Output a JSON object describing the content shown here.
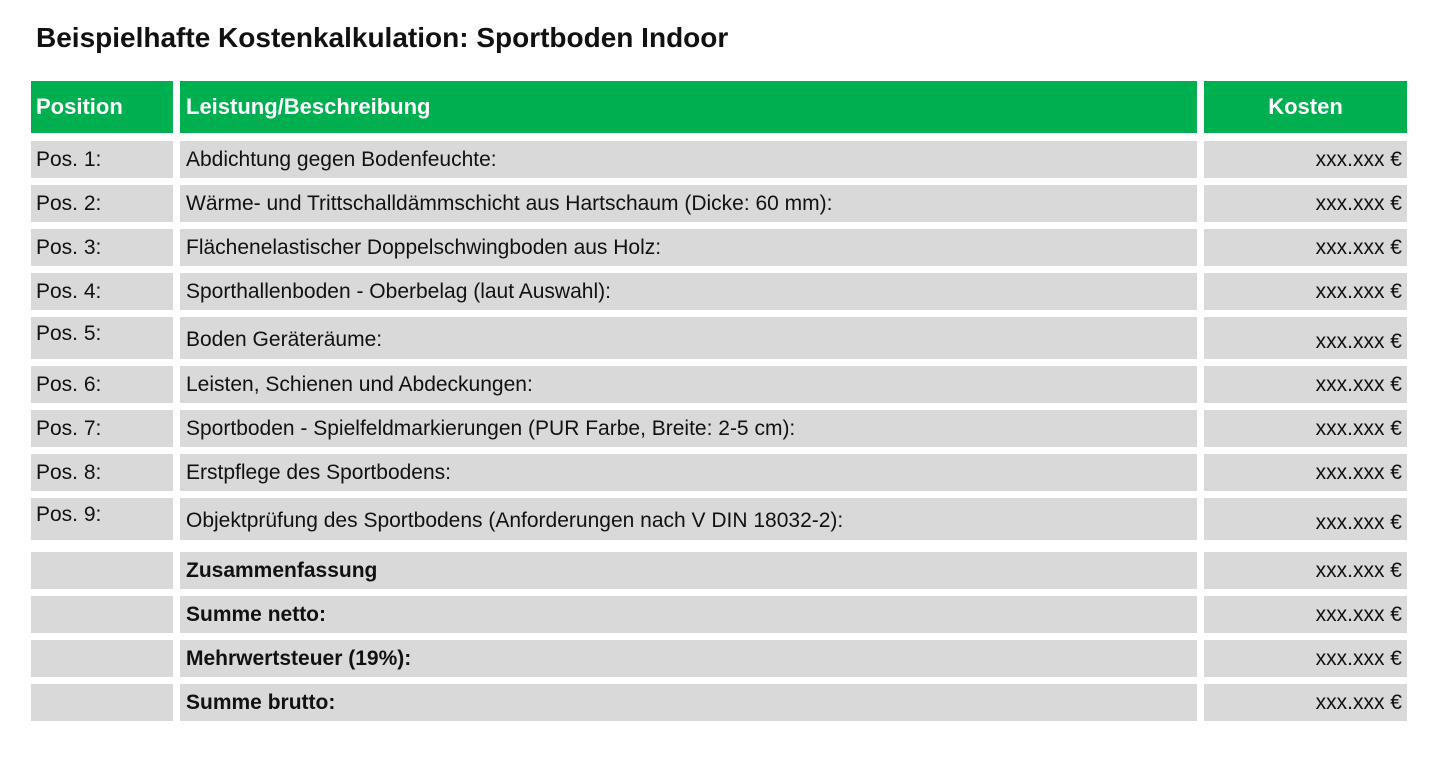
{
  "title": "Beispielhafte Kostenkalkulation: Sportboden Indoor",
  "headers": {
    "position": "Position",
    "description": "Leistung/Beschreibung",
    "cost": "Kosten"
  },
  "items": [
    {
      "pos": "Pos. 1:",
      "desc": "Abdichtung gegen Bodenfeuchte:",
      "cost": "xxx.xxx €"
    },
    {
      "pos": "Pos. 2:",
      "desc": "Wärme- und Trittschalldämmschicht aus Hartschaum (Dicke: 60 mm):",
      "cost": "xxx.xxx €"
    },
    {
      "pos": "Pos. 3:",
      "desc": "Flächenelastischer Doppelschwingboden aus Holz:",
      "cost": "xxx.xxx €"
    },
    {
      "pos": "Pos. 4:",
      "desc": "Sporthallenboden - Oberbelag (laut Auswahl):",
      "cost": "xxx.xxx €"
    },
    {
      "pos": "Pos. 5:",
      "desc": "Boden Geräteräume:",
      "cost": "xxx.xxx €"
    },
    {
      "pos": "Pos. 6:",
      "desc": "Leisten, Schienen und Abdeckungen:",
      "cost": "xxx.xxx €"
    },
    {
      "pos": "Pos. 7:",
      "desc": "Sportboden - Spielfeldmarkierungen (PUR Farbe, Breite: 2-5 cm):",
      "cost": "xxx.xxx €"
    },
    {
      "pos": "Pos. 8:",
      "desc": "Erstpflege des Sportbodens:",
      "cost": "xxx.xxx €"
    },
    {
      "pos": "Pos. 9:",
      "desc": "Objektprüfung des Sportbodens (Anforderungen nach V DIN 18032-2):",
      "cost": "xxx.xxx €"
    }
  ],
  "summary": [
    {
      "label": "Zusammenfassung",
      "cost": "xxx.xxx €"
    },
    {
      "label": "Summe netto:",
      "cost": "xxx.xxx €"
    },
    {
      "label": "Mehrwertsteuer (19%):",
      "cost": "xxx.xxx €"
    },
    {
      "label": "Summe brutto:",
      "cost": "xxx.xxx €"
    }
  ],
  "colors": {
    "header_bg": "#00b050",
    "header_text": "#ffffff",
    "cell_bg": "#d9d9d9"
  }
}
